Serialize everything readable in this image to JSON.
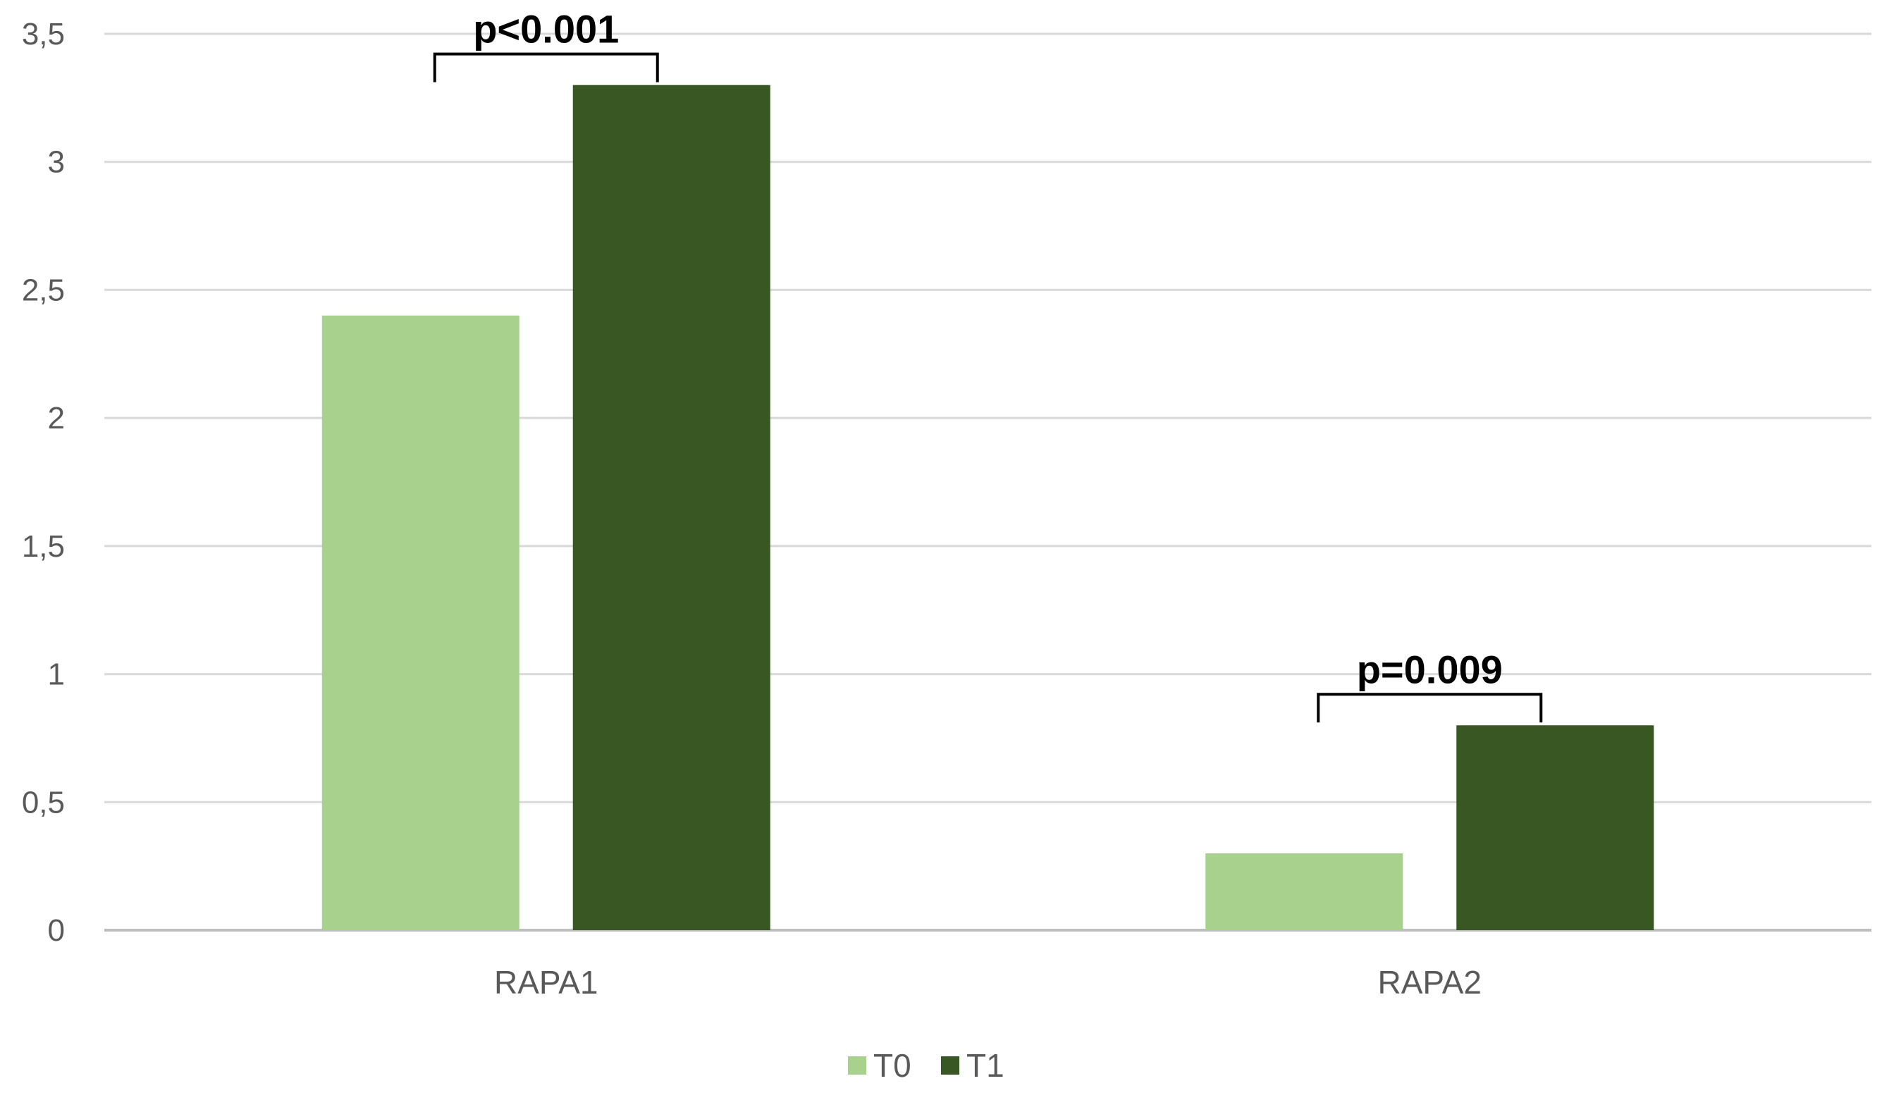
{
  "chart_data": {
    "type": "bar",
    "title": "",
    "xlabel": "",
    "ylabel": "",
    "categories": [
      "RAPA1",
      "RAPA2"
    ],
    "series": [
      {
        "name": "T0",
        "color": "#a9d18e",
        "values": [
          2.4,
          0.3
        ]
      },
      {
        "name": "T1",
        "color": "#385723",
        "values": [
          3.3,
          0.8
        ]
      }
    ],
    "ylim": [
      0,
      3.5
    ],
    "y_ticks": [
      {
        "value": 0,
        "label": "0"
      },
      {
        "value": 0.5,
        "label": "0,5"
      },
      {
        "value": 1,
        "label": "1"
      },
      {
        "value": 1.5,
        "label": "1,5"
      },
      {
        "value": 2,
        "label": "2"
      },
      {
        "value": 2.5,
        "label": "2,5"
      },
      {
        "value": 3,
        "label": "3"
      },
      {
        "value": 3.5,
        "label": "3,5"
      }
    ],
    "grid": true,
    "legend_position": "bottom-center",
    "annotations": [
      {
        "category": "RAPA1",
        "text": "p<0.001"
      },
      {
        "category": "RAPA2",
        "text": "p=0.009"
      }
    ]
  }
}
